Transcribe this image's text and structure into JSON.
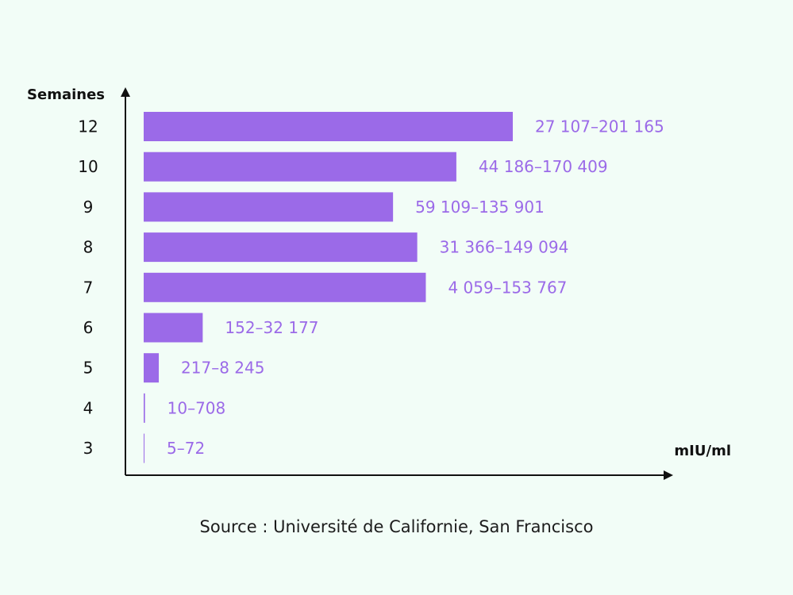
{
  "chart_data": {
    "type": "bar",
    "orientation": "horizontal",
    "ylabel": "Semaines",
    "xlabel": "mIU/ml",
    "categories": [
      "12",
      "10",
      "9",
      "8",
      "7",
      "6",
      "5",
      "4",
      "3"
    ],
    "values": [
      201165,
      170409,
      135901,
      149094,
      153767,
      32177,
      8245,
      708,
      72
    ],
    "data_labels": [
      "27 107–201 165",
      "44 186–170 409",
      "59 109–135 901",
      "31 366–149 094",
      "4 059–153 767",
      "152–32 177",
      "217–8 245",
      "10–708",
      "5–72"
    ],
    "grid": false,
    "legend": "none"
  },
  "colors": {
    "bar": "#9b6ae8",
    "label": "#9b6ae8",
    "axis": "#111111",
    "text": "#111111",
    "background": "#f2fdf7"
  },
  "source": "Source : Université de Californie, San Francisco"
}
